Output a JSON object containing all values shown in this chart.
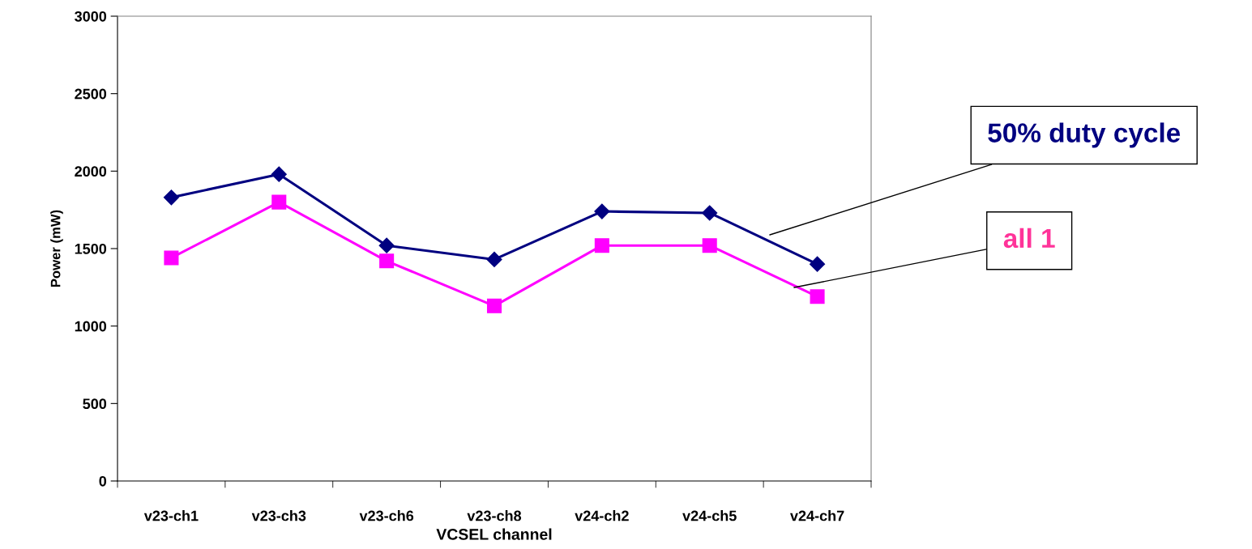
{
  "chart_data": {
    "type": "line",
    "xlabel": "VCSEL channel",
    "ylabel": "Power (mW)",
    "categories": [
      "v23-ch1",
      "v23-ch3",
      "v23-ch6",
      "v23-ch8",
      "v24-ch2",
      "v24-ch5",
      "v24-ch7"
    ],
    "series": [
      {
        "name": "50% duty cycle",
        "color": "#000080",
        "marker": "diamond",
        "values": [
          1830,
          1980,
          1520,
          1430,
          1740,
          1730,
          1400
        ]
      },
      {
        "name": "all 1",
        "color": "#ff00ff",
        "marker": "square",
        "values": [
          1440,
          1800,
          1420,
          1130,
          1520,
          1520,
          1190
        ]
      }
    ],
    "ylim": [
      0,
      3000
    ],
    "yticks": [
      0,
      500,
      1000,
      1500,
      2000,
      2500,
      3000
    ],
    "grid": false,
    "legend": "right",
    "line_style": "solid"
  }
}
